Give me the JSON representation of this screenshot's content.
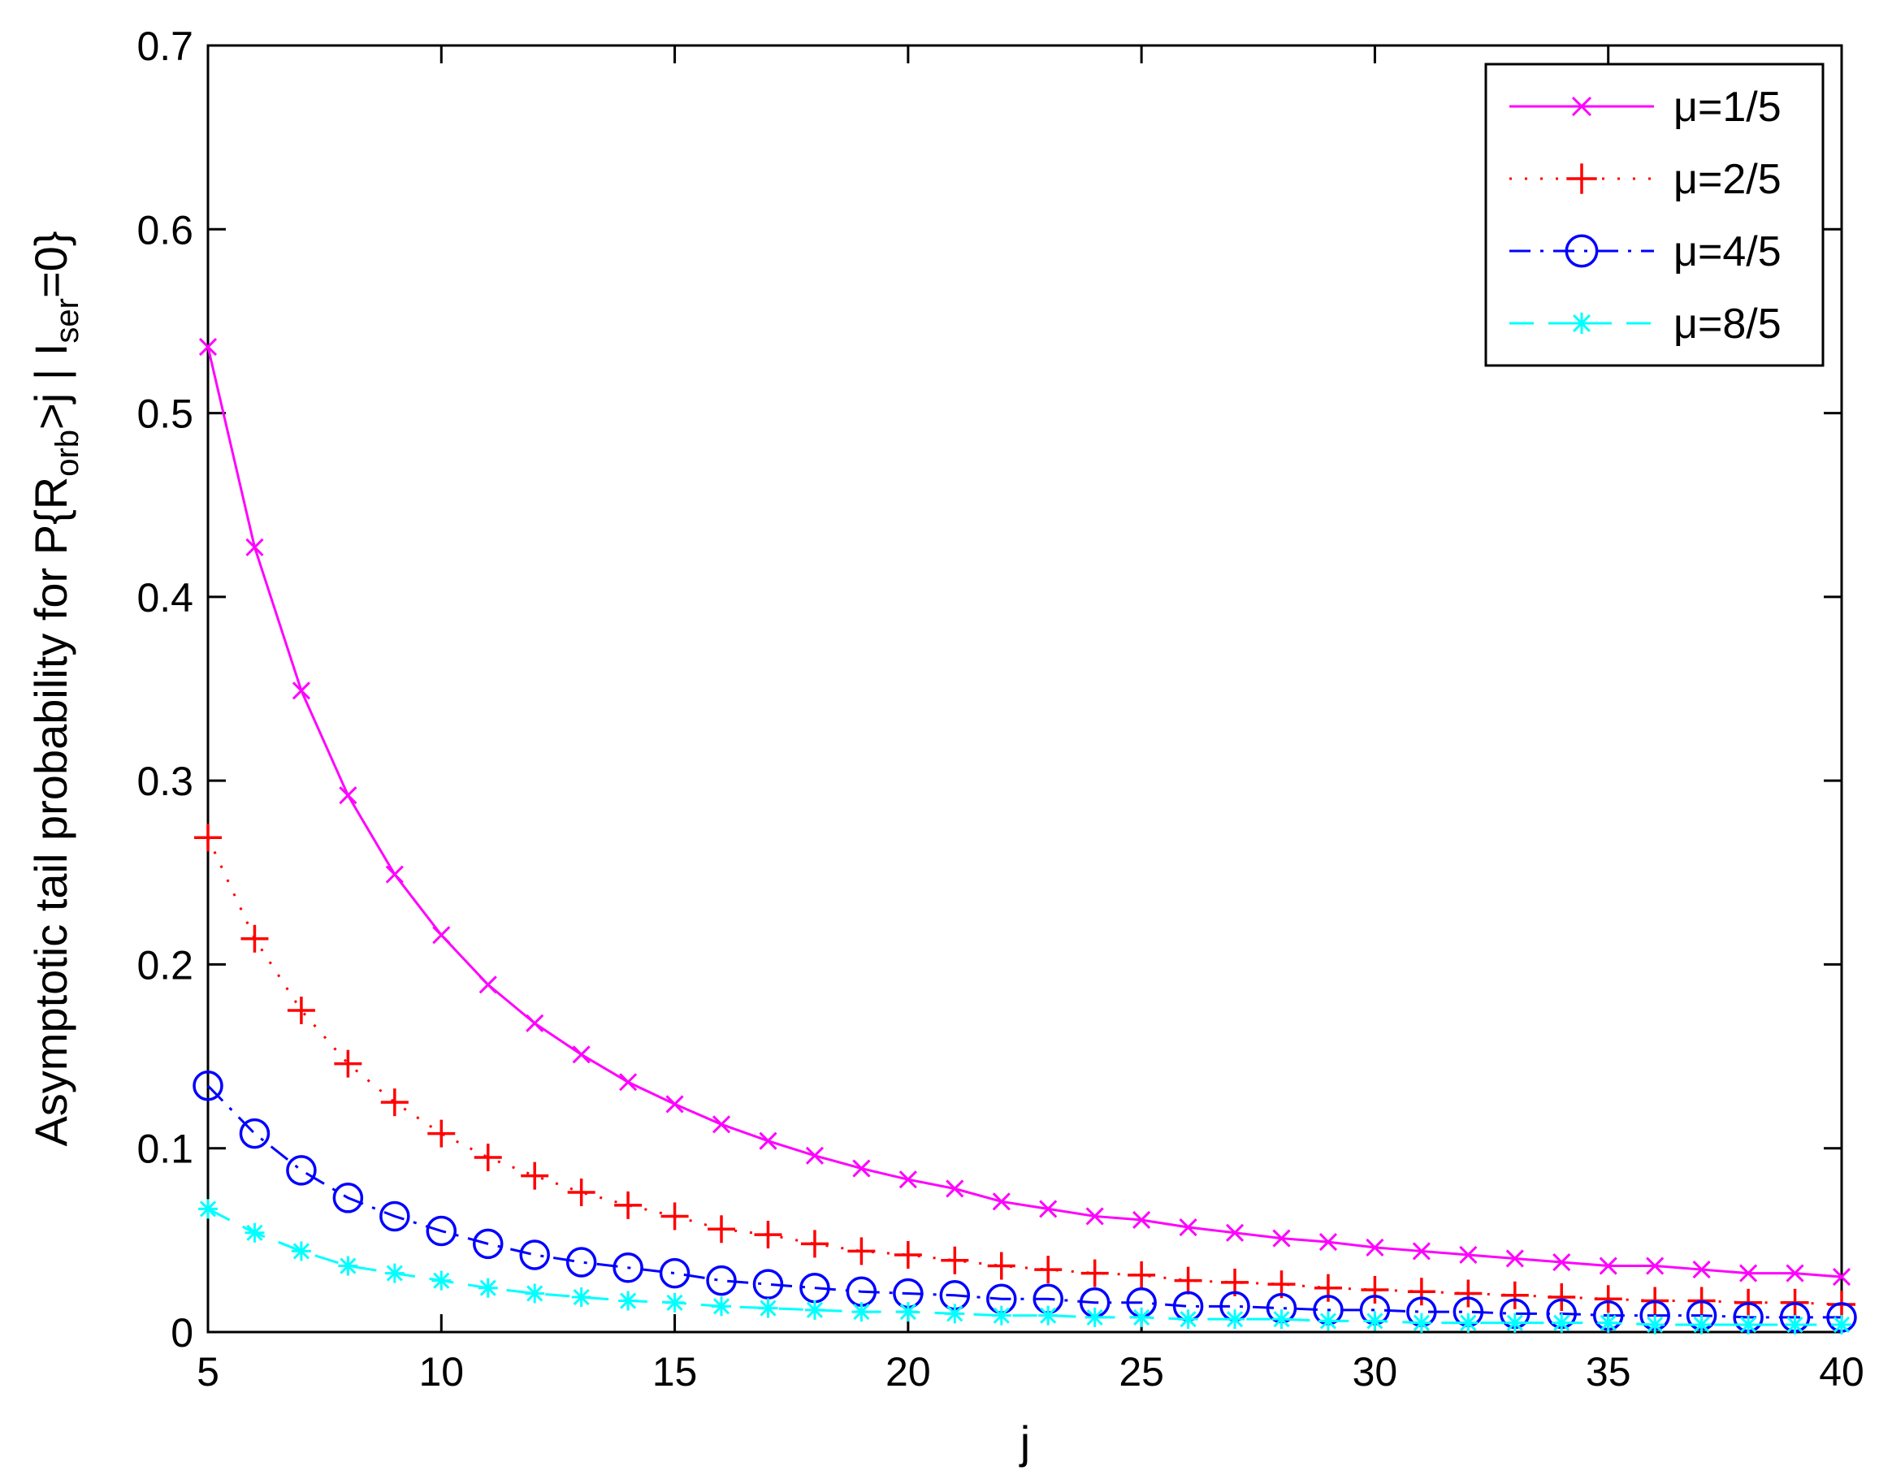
{
  "chart_data": {
    "type": "line",
    "xlabel": "j",
    "ylabel": {
      "main": "Asymptotic tail probability for P{R",
      "sub1": "orb",
      "mid": ">j | I",
      "sub2": "ser",
      "tail": "=0}"
    },
    "xlim": [
      5,
      40
    ],
    "ylim": [
      0,
      0.7
    ],
    "xticks": [
      5,
      10,
      15,
      20,
      25,
      30,
      35,
      40
    ],
    "yticks": [
      0,
      0.1,
      0.2,
      0.3,
      0.4,
      0.5,
      0.6,
      0.7
    ],
    "xtick_labels": [
      "5",
      "10",
      "15",
      "20",
      "25",
      "30",
      "35",
      "40"
    ],
    "ytick_labels": [
      "0",
      "0.1",
      "0.2",
      "0.3",
      "0.4",
      "0.5",
      "0.6",
      "0.7"
    ],
    "grid": false,
    "legend_position": "top-right",
    "x": [
      5,
      6,
      7,
      8,
      9,
      10,
      11,
      12,
      13,
      14,
      15,
      16,
      17,
      18,
      19,
      20,
      21,
      22,
      23,
      24,
      25,
      26,
      27,
      28,
      29,
      30,
      31,
      32,
      33,
      34,
      35,
      36,
      37,
      38,
      39,
      40
    ],
    "series": [
      {
        "name": "μ=1/5",
        "color": "#ff00ff",
        "line_style": "solid",
        "marker": "x",
        "values": [
          0.536,
          0.427,
          0.349,
          0.292,
          0.249,
          0.216,
          0.189,
          0.168,
          0.151,
          0.136,
          0.124,
          0.113,
          0.104,
          0.096,
          0.089,
          0.083,
          0.078,
          0.071,
          0.067,
          0.063,
          0.061,
          0.057,
          0.054,
          0.051,
          0.049,
          0.046,
          0.044,
          0.042,
          0.04,
          0.038,
          0.036,
          0.036,
          0.034,
          0.032,
          0.032,
          0.03
        ]
      },
      {
        "name": "μ=2/5",
        "color": "#ff0000",
        "line_style": "dotted",
        "marker": "+",
        "values": [
          0.269,
          0.214,
          0.175,
          0.146,
          0.125,
          0.108,
          0.095,
          0.085,
          0.076,
          0.069,
          0.063,
          0.056,
          0.053,
          0.048,
          0.044,
          0.042,
          0.039,
          0.036,
          0.034,
          0.032,
          0.031,
          0.028,
          0.027,
          0.026,
          0.024,
          0.023,
          0.022,
          0.021,
          0.02,
          0.019,
          0.018,
          0.017,
          0.017,
          0.016,
          0.016,
          0.015
        ]
      },
      {
        "name": "μ=4/5",
        "color": "#0000ff",
        "line_style": "dashdot",
        "marker": "o",
        "values": [
          0.134,
          0.108,
          0.088,
          0.073,
          0.063,
          0.055,
          0.048,
          0.042,
          0.038,
          0.035,
          0.032,
          0.028,
          0.026,
          0.024,
          0.022,
          0.021,
          0.02,
          0.018,
          0.018,
          0.016,
          0.016,
          0.014,
          0.014,
          0.013,
          0.012,
          0.012,
          0.011,
          0.011,
          0.01,
          0.01,
          0.009,
          0.009,
          0.009,
          0.008,
          0.008,
          0.008
        ]
      },
      {
        "name": "μ=8/5",
        "color": "#00ffff",
        "line_style": "dashed",
        "marker": "*",
        "values": [
          0.067,
          0.054,
          0.044,
          0.036,
          0.032,
          0.028,
          0.024,
          0.021,
          0.019,
          0.017,
          0.016,
          0.014,
          0.013,
          0.012,
          0.011,
          0.011,
          0.01,
          0.009,
          0.009,
          0.008,
          0.008,
          0.007,
          0.007,
          0.007,
          0.006,
          0.006,
          0.005,
          0.005,
          0.005,
          0.005,
          0.005,
          0.004,
          0.004,
          0.004,
          0.004,
          0.004
        ]
      }
    ]
  }
}
